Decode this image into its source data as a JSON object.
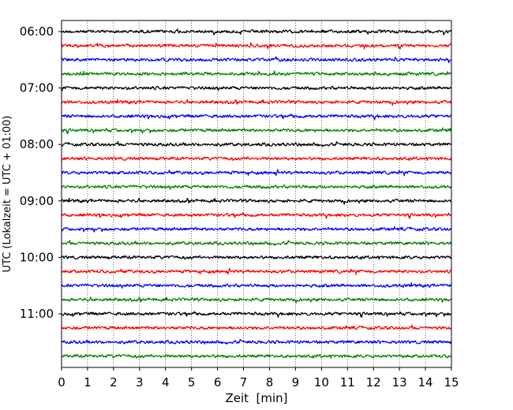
{
  "chart_data": {
    "type": "line",
    "title": "",
    "xlabel": "Zeit  [min]",
    "ylabel": "UTC (Lokalzeit = UTC + 01:00)",
    "xlim": [
      0,
      15
    ],
    "x_ticks": [
      0,
      1,
      2,
      3,
      4,
      5,
      6,
      7,
      8,
      9,
      10,
      11,
      12,
      13,
      14,
      15
    ],
    "y_ticks": [
      "06:00",
      "07:00",
      "08:00",
      "09:00",
      "10:00",
      "11:00"
    ],
    "grid": "vertical dotted at each minute",
    "trace_interval_minutes": 15,
    "trace_colors": [
      "#000000",
      "#ff0000",
      "#0000ff",
      "#008000"
    ],
    "series": [
      {
        "start": "06:00",
        "color": "#000000"
      },
      {
        "start": "06:15",
        "color": "#ff0000"
      },
      {
        "start": "06:30",
        "color": "#0000ff"
      },
      {
        "start": "06:45",
        "color": "#008000"
      },
      {
        "start": "07:00",
        "color": "#000000"
      },
      {
        "start": "07:15",
        "color": "#ff0000"
      },
      {
        "start": "07:30",
        "color": "#0000ff"
      },
      {
        "start": "07:45",
        "color": "#008000"
      },
      {
        "start": "08:00",
        "color": "#000000"
      },
      {
        "start": "08:15",
        "color": "#ff0000"
      },
      {
        "start": "08:30",
        "color": "#0000ff"
      },
      {
        "start": "08:45",
        "color": "#008000"
      },
      {
        "start": "09:00",
        "color": "#000000"
      },
      {
        "start": "09:15",
        "color": "#ff0000"
      },
      {
        "start": "09:30",
        "color": "#0000ff"
      },
      {
        "start": "09:45",
        "color": "#008000"
      },
      {
        "start": "10:00",
        "color": "#000000"
      },
      {
        "start": "10:15",
        "color": "#ff0000"
      },
      {
        "start": "10:30",
        "color": "#0000ff"
      },
      {
        "start": "10:45",
        "color": "#008000"
      },
      {
        "start": "11:00",
        "color": "#000000"
      },
      {
        "start": "11:15",
        "color": "#ff0000"
      },
      {
        "start": "11:30",
        "color": "#0000ff"
      },
      {
        "start": "11:45",
        "color": "#008000"
      }
    ]
  }
}
